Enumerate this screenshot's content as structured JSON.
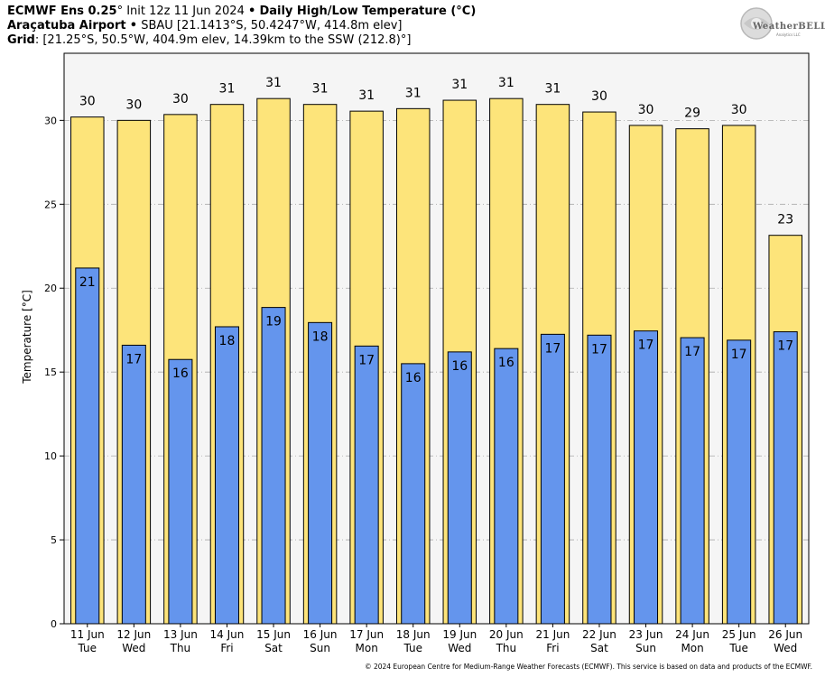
{
  "header": {
    "line1": {
      "model": "ECMWF Ens 0.25",
      "degree": "°",
      "init": "Init 12z 11 Jun 2024",
      "bullet": "•",
      "product": "Daily High/Low Temperature (°C)"
    },
    "line2": {
      "station": "Araçatuba Airport",
      "bullet": "•",
      "details": "SBAU [21.1413°S, 50.4247°W, 414.8m elev]"
    },
    "line3": {
      "label": "Grid",
      "details": ": [21.25°S, 50.5°W, 404.9m elev, 14.39km to the SSW (212.8)°]"
    }
  },
  "logo": {
    "name": "WeatherBELL",
    "sub": "Analytics LLC"
  },
  "footer": {
    "copyright": "© 2024 European Centre for Medium-Range Weather Forecasts (ECMWF). This service is based on data and products of the ECMWF."
  },
  "colors": {
    "high": "#fde47a",
    "low": "#6495ed",
    "plot_bg": "#f5f5f5",
    "grid": "#aaaaaa"
  },
  "chart_data": {
    "type": "bar",
    "title": "Daily High/Low Temperature (°C)",
    "ylabel": "Temperature [°C]",
    "xlabel": "",
    "ylim": [
      0,
      34
    ],
    "yticks": [
      0,
      5,
      10,
      15,
      20,
      25,
      30
    ],
    "grid": true,
    "categories": [
      {
        "date": "11 Jun",
        "day": "Tue"
      },
      {
        "date": "12 Jun",
        "day": "Wed"
      },
      {
        "date": "13 Jun",
        "day": "Thu"
      },
      {
        "date": "14 Jun",
        "day": "Fri"
      },
      {
        "date": "15 Jun",
        "day": "Sat"
      },
      {
        "date": "16 Jun",
        "day": "Sun"
      },
      {
        "date": "17 Jun",
        "day": "Mon"
      },
      {
        "date": "18 Jun",
        "day": "Tue"
      },
      {
        "date": "19 Jun",
        "day": "Wed"
      },
      {
        "date": "20 Jun",
        "day": "Thu"
      },
      {
        "date": "21 Jun",
        "day": "Fri"
      },
      {
        "date": "22 Jun",
        "day": "Sat"
      },
      {
        "date": "23 Jun",
        "day": "Sun"
      },
      {
        "date": "24 Jun",
        "day": "Mon"
      },
      {
        "date": "25 Jun",
        "day": "Tue"
      },
      {
        "date": "26 Jun",
        "day": "Wed"
      }
    ],
    "series": [
      {
        "name": "High",
        "values": [
          30.2,
          30.0,
          30.35,
          30.95,
          31.3,
          30.95,
          30.55,
          30.7,
          31.2,
          31.3,
          30.95,
          30.5,
          29.7,
          29.5,
          29.7,
          23.15
        ],
        "labels": [
          "30",
          "30",
          "30",
          "31",
          "31",
          "31",
          "31",
          "31",
          "31",
          "31",
          "31",
          "30",
          "30",
          "29",
          "30",
          "23"
        ]
      },
      {
        "name": "Low",
        "values": [
          21.2,
          16.6,
          15.75,
          17.7,
          18.85,
          17.95,
          16.55,
          15.5,
          16.2,
          16.4,
          17.25,
          17.2,
          17.45,
          17.05,
          16.9,
          17.4
        ],
        "labels": [
          "21",
          "17",
          "16",
          "18",
          "19",
          "18",
          "17",
          "16",
          "16",
          "16",
          "17",
          "17",
          "17",
          "17",
          "17",
          "17"
        ]
      }
    ]
  }
}
